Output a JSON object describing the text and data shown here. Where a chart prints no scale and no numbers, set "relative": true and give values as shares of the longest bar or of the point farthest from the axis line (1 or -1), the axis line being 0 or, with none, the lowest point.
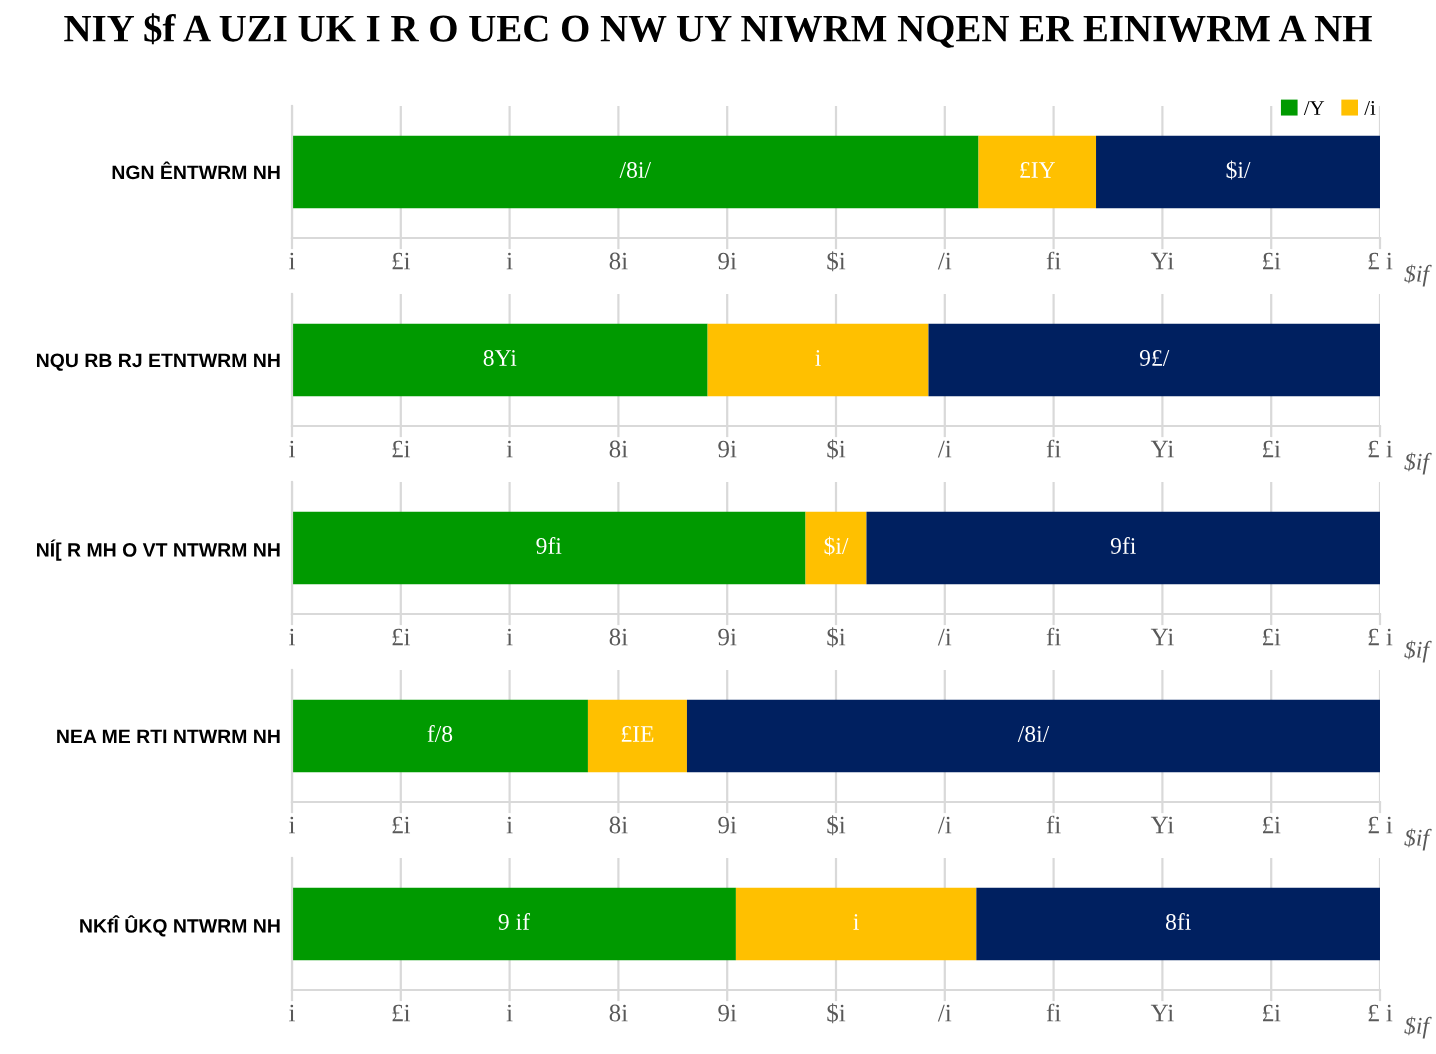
{
  "chart_data": [
    {
      "type": "bar",
      "orientation": "horizontal",
      "stacked": true,
      "relative": true,
      "title": "NIY $f A UZI UK I R O UEC O NW UY NIWRM NQEN ER EINIWRM A NH",
      "categories": [
        "NGN ÊNTWRM NH"
      ],
      "series": [
        {
          "name": "/Y",
          "color": "#009a00",
          "values": [
            0.631
          ]
        },
        {
          "name": "/i",
          "color": "#ffc000",
          "values": [
            0.108
          ]
        },
        {
          "color": "#002060",
          "values": [
            0.261
          ]
        }
      ],
      "annotations": [
        "/8i/",
        "£IY",
        "$i/",
        "i",
        "£i",
        "i",
        "8i",
        "9i",
        "$i",
        "/i",
        "fi",
        "Yi",
        "£i",
        "£ i"
      ],
      "xlabel": "$if",
      "grid": "x",
      "legend": "top right"
    },
    {
      "type": "bar",
      "orientation": "horizontal",
      "stacked": true,
      "relative": true,
      "categories": [
        "NQU RB RJ ETNTWRM NH"
      ],
      "series": [
        {
          "color": "#009a00",
          "values": [
            0.382
          ]
        },
        {
          "color": "#ffc000",
          "values": [
            0.203
          ]
        },
        {
          "color": "#002060",
          "values": [
            0.415
          ]
        }
      ],
      "annotations": [
        "8Yi",
        "i",
        "9£/",
        "i",
        "£i",
        "i",
        "8i",
        "9i",
        "$i",
        "/i",
        "fi",
        "Yi",
        "£i",
        "£ i"
      ],
      "xlabel": "$if",
      "grid": "x"
    },
    {
      "type": "bar",
      "orientation": "horizontal",
      "stacked": true,
      "relative": true,
      "categories": [
        "NÍ[ R MH O VT NTWRM NH"
      ],
      "series": [
        {
          "color": "#009a00",
          "values": [
            0.472
          ]
        },
        {
          "color": "#ffc000",
          "values": [
            0.056
          ]
        },
        {
          "color": "#002060",
          "values": [
            0.472
          ]
        }
      ],
      "annotations": [
        "9fi",
        "$i/",
        "9fi",
        "i",
        "£i",
        "i",
        "8i",
        "9i",
        "$i",
        "/i",
        "fi",
        "Yi",
        "£i",
        "£ i"
      ],
      "xlabel": "$if",
      "grid": "x"
    },
    {
      "type": "bar",
      "orientation": "horizontal",
      "stacked": true,
      "relative": true,
      "categories": [
        "NEA ME RTI NTWRM NH"
      ],
      "series": [
        {
          "color": "#009a00",
          "values": [
            0.272
          ]
        },
        {
          "color": "#ffc000",
          "values": [
            0.091
          ]
        },
        {
          "color": "#002060",
          "values": [
            0.637
          ]
        }
      ],
      "annotations": [
        "f/8",
        "£IE",
        "/8i/",
        "i",
        "£i",
        "i",
        "8i",
        "9i",
        "$i",
        "/i",
        "fi",
        "Yi",
        "£i",
        "£ i"
      ],
      "xlabel": "$if",
      "grid": "x"
    },
    {
      "type": "bar",
      "orientation": "horizontal",
      "stacked": true,
      "relative": true,
      "categories": [
        "NKfÎ ÛKQ NTWRM NH"
      ],
      "series": [
        {
          "color": "#009a00",
          "values": [
            0.408
          ]
        },
        {
          "color": "#ffc000",
          "values": [
            0.221
          ]
        },
        {
          "color": "#002060",
          "values": [
            0.371
          ]
        }
      ],
      "annotations": [
        "9 if",
        "i",
        "8fi",
        "i",
        "£i",
        "i",
        "8i",
        "9i",
        "$i",
        "/i",
        "fi",
        "Yi",
        "£i",
        "£ i"
      ],
      "xlabel": "$if",
      "grid": "x"
    }
  ]
}
